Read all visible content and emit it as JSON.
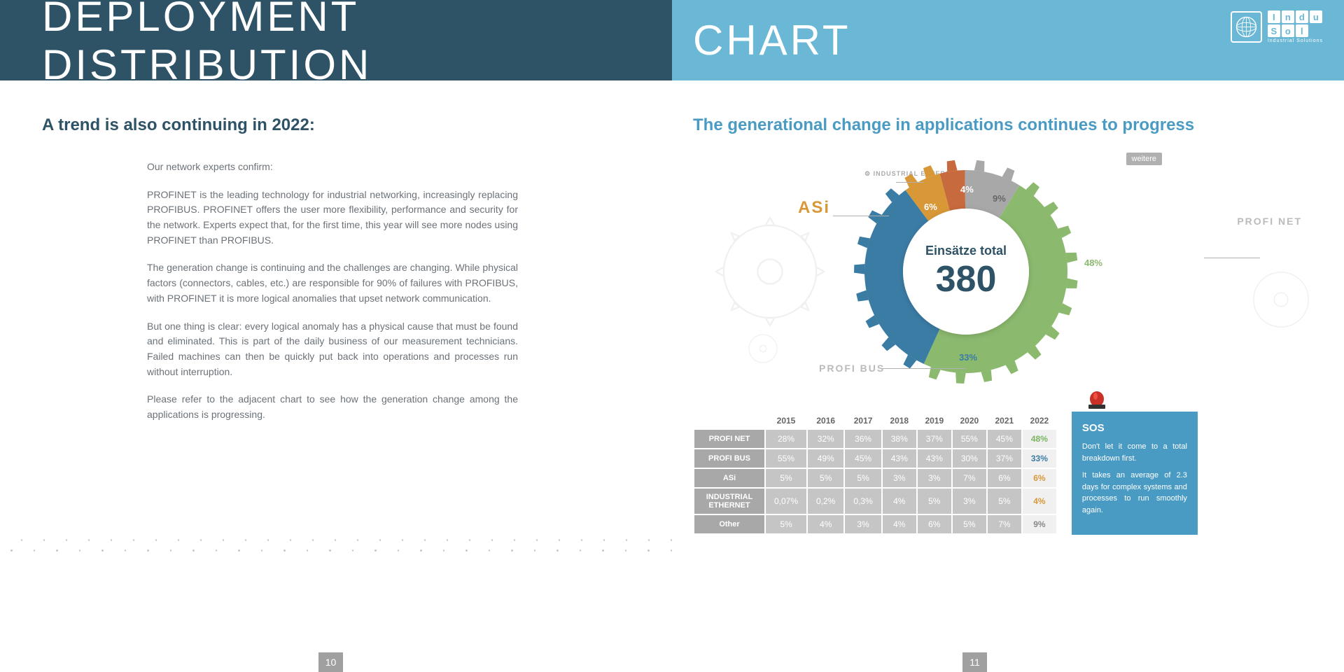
{
  "header": {
    "title_left": "DEPLOYMENT DISTRIBUTION",
    "title_right": "CHART",
    "logo_chars_top": [
      "I",
      "n",
      "d",
      "u"
    ],
    "logo_chars_bot": [
      "S",
      "o",
      "l"
    ],
    "logo_sub": "Industrial Solutions"
  },
  "left": {
    "subtitle": "A trend is also continuing in 2022:",
    "p1": "Our network experts confirm:",
    "p2": "PROFINET is the leading technology for industrial networking, increasingly replacing PROFIBUS. PROFINET offers the user more flexibility, performance and security for the network. Experts expect that, for the first time, this year will see more nodes using PROFINET than PROFIBUS.",
    "p3": "The generation change is continuing and the challenges are changing. While physical factors (connectors, cables, etc.) are responsible for 90% of failures with PROFIBUS, with PROFINET it is more logical anomalies that upset network communication.",
    "p4": "But one thing is clear: every logical anomaly has a physical cause that must be found and eliminated. This is part of the daily business of our measurement technicians. Failed machines can then be quickly put back into operations and processes run without interruption.",
    "p5": "Please refer to the adjacent chart to see how the generation change among the applications is progressing.",
    "pagenum": "10"
  },
  "right": {
    "subtitle": "The generational change in applications continues to progress",
    "pagenum": "11",
    "chart": {
      "type": "donut-gear",
      "center_label": "Einsätze total",
      "center_value": "380",
      "slices": [
        {
          "label": "PROFINET",
          "value": 48,
          "color": "#8bb96e"
        },
        {
          "label": "PROFIBUS",
          "value": 33,
          "color": "#3b7ca5"
        },
        {
          "label": "ASi",
          "value": 6,
          "color": "#d89838"
        },
        {
          "label": "INDUSTRIAL ETHERNET",
          "value": 4,
          "color": "#c76a3d"
        },
        {
          "label": "weitere",
          "value": 9,
          "color": "#a8a8a8"
        }
      ],
      "legend_weitere": "weitere",
      "inner_radius": 90,
      "outer_radius": 145,
      "background_color": "#ffffff"
    },
    "protocol_labels": {
      "asi": "ASi",
      "asi_color": "#d89838",
      "industrial_ethernet": "INDUSTRIAL ETHERNET",
      "profinet": "PROFI NET",
      "profibus": "PROFI BUS"
    },
    "pct_48": "48%",
    "pct_33": "33%",
    "pct_6": "6%",
    "pct_4": "4%",
    "pct_9": "9%",
    "table": {
      "years": [
        "2015",
        "2016",
        "2017",
        "2018",
        "2019",
        "2020",
        "2021",
        "2022"
      ],
      "rows": [
        {
          "name": "PROFI NET",
          "key": "profinet",
          "vals": [
            "28%",
            "32%",
            "36%",
            "38%",
            "37%",
            "55%",
            "45%",
            "48%"
          ],
          "color_class": "c-green"
        },
        {
          "name": "PROFI BUS",
          "key": "profibus",
          "vals": [
            "55%",
            "49%",
            "45%",
            "43%",
            "43%",
            "30%",
            "37%",
            "33%"
          ],
          "color_class": "c-blue"
        },
        {
          "name": "ASi",
          "key": "asi",
          "vals": [
            "5%",
            "5%",
            "5%",
            "3%",
            "3%",
            "7%",
            "6%",
            "6%"
          ],
          "color_class": "c-orange"
        },
        {
          "name": "INDUSTRIAL ETHERNET",
          "key": "ie",
          "vals": [
            "0,07%",
            "0,2%",
            "0,3%",
            "4%",
            "5%",
            "3%",
            "5%",
            "4%"
          ],
          "color_class": "c-orange"
        },
        {
          "name": "Other",
          "key": "other",
          "vals": [
            "5%",
            "4%",
            "3%",
            "4%",
            "6%",
            "5%",
            "7%",
            "9%"
          ],
          "color_class": "c-gray"
        }
      ]
    },
    "sos": {
      "title": "SOS",
      "p1": "Don't let it come to a total breakdown first.",
      "p2": "It takes an average of 2.3 days for complex systems and processes to run smoothly again."
    }
  }
}
